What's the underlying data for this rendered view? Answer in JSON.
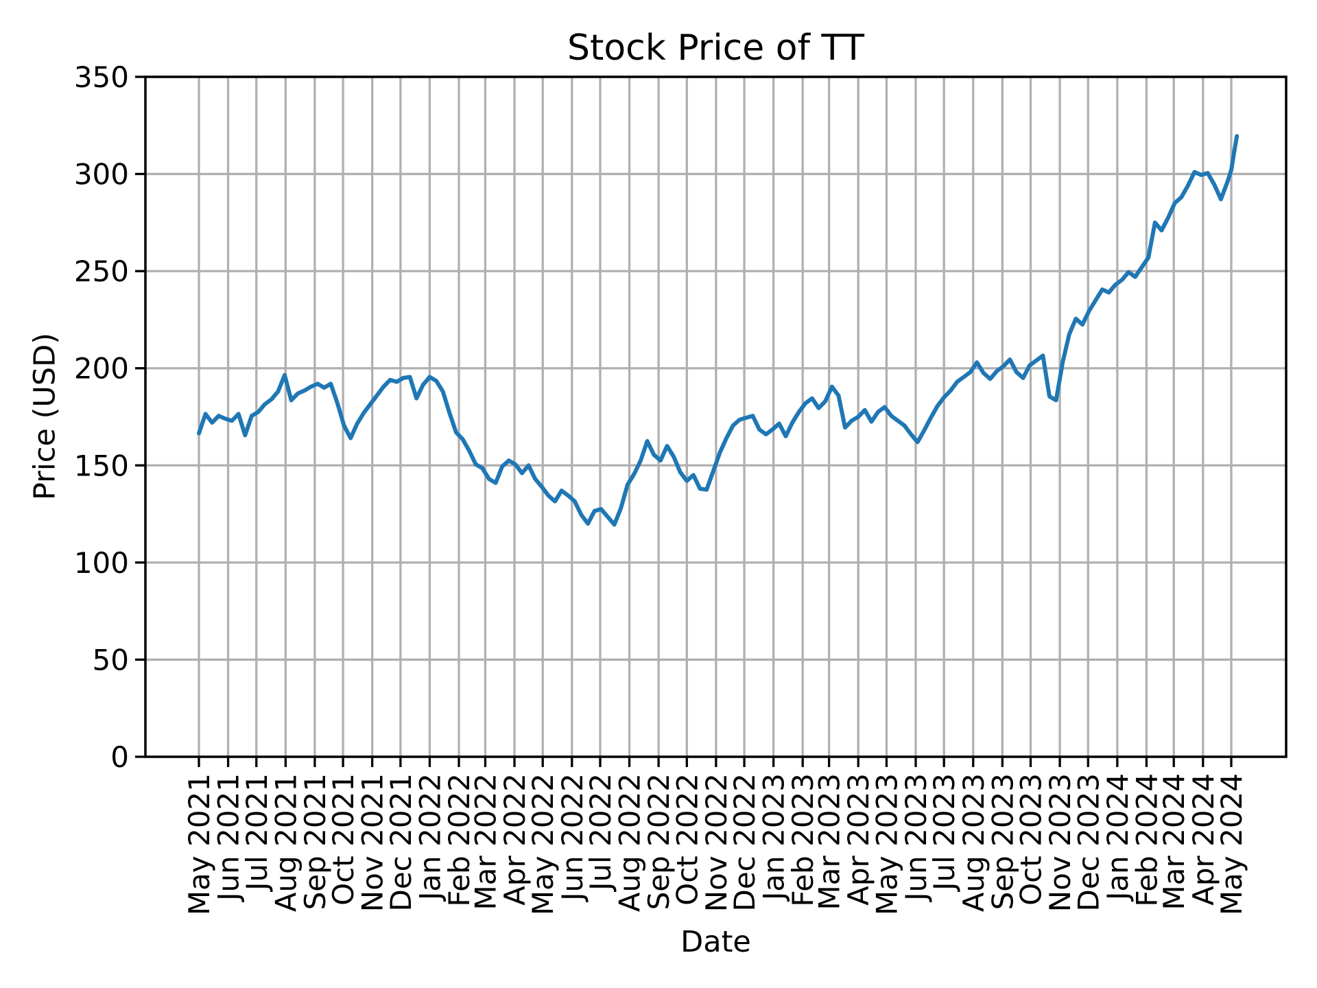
{
  "chart_data": {
    "type": "line",
    "title": "Stock Price of TT",
    "xlabel": "Date",
    "ylabel": "Price (USD)",
    "ylim": [
      0,
      350
    ],
    "grid": true,
    "legend": "none",
    "grid_color": "#b0b0b0",
    "axis_color": "#000000",
    "background_color": "#ffffff",
    "y_ticks": [
      0,
      50,
      100,
      150,
      200,
      250,
      300,
      350
    ],
    "x_tick_labels": [
      "May 2021",
      "Jun 2021",
      "Jul 2021",
      "Aug 2021",
      "Sep 2021",
      "Oct 2021",
      "Nov 2021",
      "Dec 2021",
      "Jan 2022",
      "Feb 2022",
      "Mar 2022",
      "Apr 2022",
      "May 2022",
      "Jun 2022",
      "Jul 2022",
      "Aug 2022",
      "Sep 2022",
      "Oct 2022",
      "Nov 2022",
      "Dec 2022",
      "Jan 2023",
      "Feb 2023",
      "Mar 2023",
      "Apr 2023",
      "May 2023",
      "Jun 2023",
      "Jul 2023",
      "Aug 2023",
      "Sep 2023",
      "Oct 2023",
      "Nov 2023",
      "Dec 2023",
      "Jan 2024",
      "Feb 2024",
      "Mar 2024",
      "Apr 2024",
      "May 2024"
    ],
    "x_tick_day_offsets": [
      0,
      31,
      61,
      92,
      123,
      153,
      184,
      214,
      245,
      276,
      304,
      335,
      365,
      396,
      426,
      457,
      488,
      518,
      549,
      579,
      610,
      641,
      669,
      700,
      730,
      761,
      791,
      822,
      853,
      883,
      914,
      944,
      975,
      1006,
      1035,
      1066,
      1096
    ],
    "total_days": 1096,
    "series": {
      "name": "TT",
      "color": "#1f77b4",
      "start_day": 0,
      "step_days": 7,
      "weekly_values": [
        166.5,
        176.5,
        172.0,
        175.5,
        174.0,
        173.0,
        176.5,
        165.5,
        175.5,
        177.5,
        181.5,
        184.0,
        188.0,
        196.5,
        183.5,
        187.0,
        188.5,
        190.5,
        192.0,
        190.0,
        192.0,
        182.0,
        170.5,
        164.0,
        171.5,
        177.0,
        181.5,
        186.0,
        190.5,
        194.0,
        193.0,
        195.0,
        195.5,
        184.5,
        191.5,
        195.5,
        193.5,
        188.0,
        177.0,
        167.0,
        163.5,
        157.5,
        150.5,
        148.5,
        143.0,
        141.0,
        149.5,
        152.5,
        150.5,
        146.0,
        150.0,
        143.0,
        139.0,
        134.5,
        131.5,
        137.0,
        134.5,
        131.5,
        124.5,
        120.0,
        126.5,
        127.5,
        123.5,
        119.5,
        128.0,
        140.0,
        145.5,
        152.5,
        162.5,
        155.5,
        152.5,
        160.0,
        154.5,
        146.5,
        142.0,
        145.0,
        138.0,
        137.5,
        147.0,
        156.5,
        164.0,
        170.5,
        173.5,
        174.5,
        175.5,
        168.5,
        166.0,
        168.5,
        171.5,
        165.0,
        172.0,
        177.5,
        182.0,
        184.5,
        179.5,
        183.0,
        190.5,
        186.0,
        169.5,
        173.0,
        175.0,
        178.5,
        172.5,
        177.5,
        180.0,
        175.5,
        173.0,
        170.5,
        166.0,
        162.0,
        168.0,
        174.5,
        180.5,
        185.0,
        188.5,
        193.0,
        195.5,
        198.0,
        203.0,
        197.5,
        194.5,
        198.5,
        201.0,
        204.5,
        198.0,
        195.0,
        201.5,
        204.0,
        206.5,
        185.5,
        183.5,
        203.0,
        217.5,
        225.5,
        222.5,
        229.5,
        235.0,
        240.5,
        239.0,
        243.0,
        245.5,
        249.5,
        247.0,
        252.0,
        257.0,
        275.0,
        271.0,
        277.5,
        285.0,
        288.0,
        294.0,
        301.0,
        299.5,
        300.5,
        294.5,
        287.0,
        296.0
      ],
      "extra_points": [
        [
          1096,
          302.0
        ],
        [
          1099,
          311.0
        ],
        [
          1102,
          319.5
        ]
      ]
    }
  }
}
